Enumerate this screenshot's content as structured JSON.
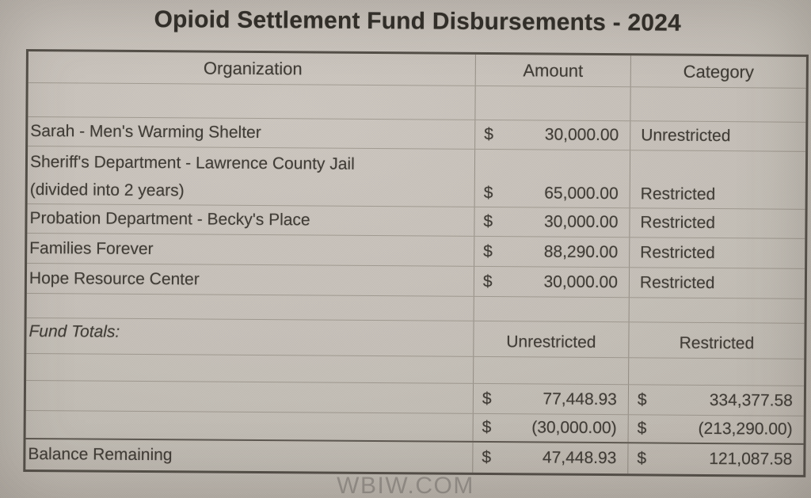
{
  "title": "Opioid Settlement Fund Disbursements - 2024",
  "watermark": "WBIW.COM",
  "colors": {
    "paper": "#c6c0b8",
    "ink": "#3e3a34",
    "table_border": "#534e47",
    "gridline": "#8d867d",
    "watermark": "#96908a"
  },
  "table": {
    "headers": [
      "Organization",
      "Amount",
      "Category"
    ],
    "currency_symbol": "$",
    "rows": [
      {
        "org": "Sarah - Men's Warming Shelter",
        "amount": "30,000.00",
        "category": "Unrestricted"
      },
      {
        "org": "Sheriff's Department - Lawrence County Jail",
        "org_note": "(divided into 2 years)",
        "amount": "65,000.00",
        "category": "Restricted"
      },
      {
        "org": "Probation Department - Becky's Place",
        "amount": "30,000.00",
        "category": "Restricted"
      },
      {
        "org": "Families Forever",
        "amount": "88,290.00",
        "category": "Restricted"
      },
      {
        "org": "Hope Resource Center",
        "amount": "30,000.00",
        "category": "Restricted"
      }
    ],
    "totals": {
      "label": "Fund Totals:",
      "columns": [
        "Unrestricted",
        "Restricted"
      ],
      "rows": [
        {
          "unrestricted": "77,448.93",
          "restricted": "334,377.58"
        },
        {
          "unrestricted": "(30,000.00)",
          "restricted": "(213,290.00)"
        }
      ],
      "balance": {
        "label": "Balance Remaining",
        "unrestricted": "47,448.93",
        "restricted": "121,087.58"
      }
    }
  }
}
